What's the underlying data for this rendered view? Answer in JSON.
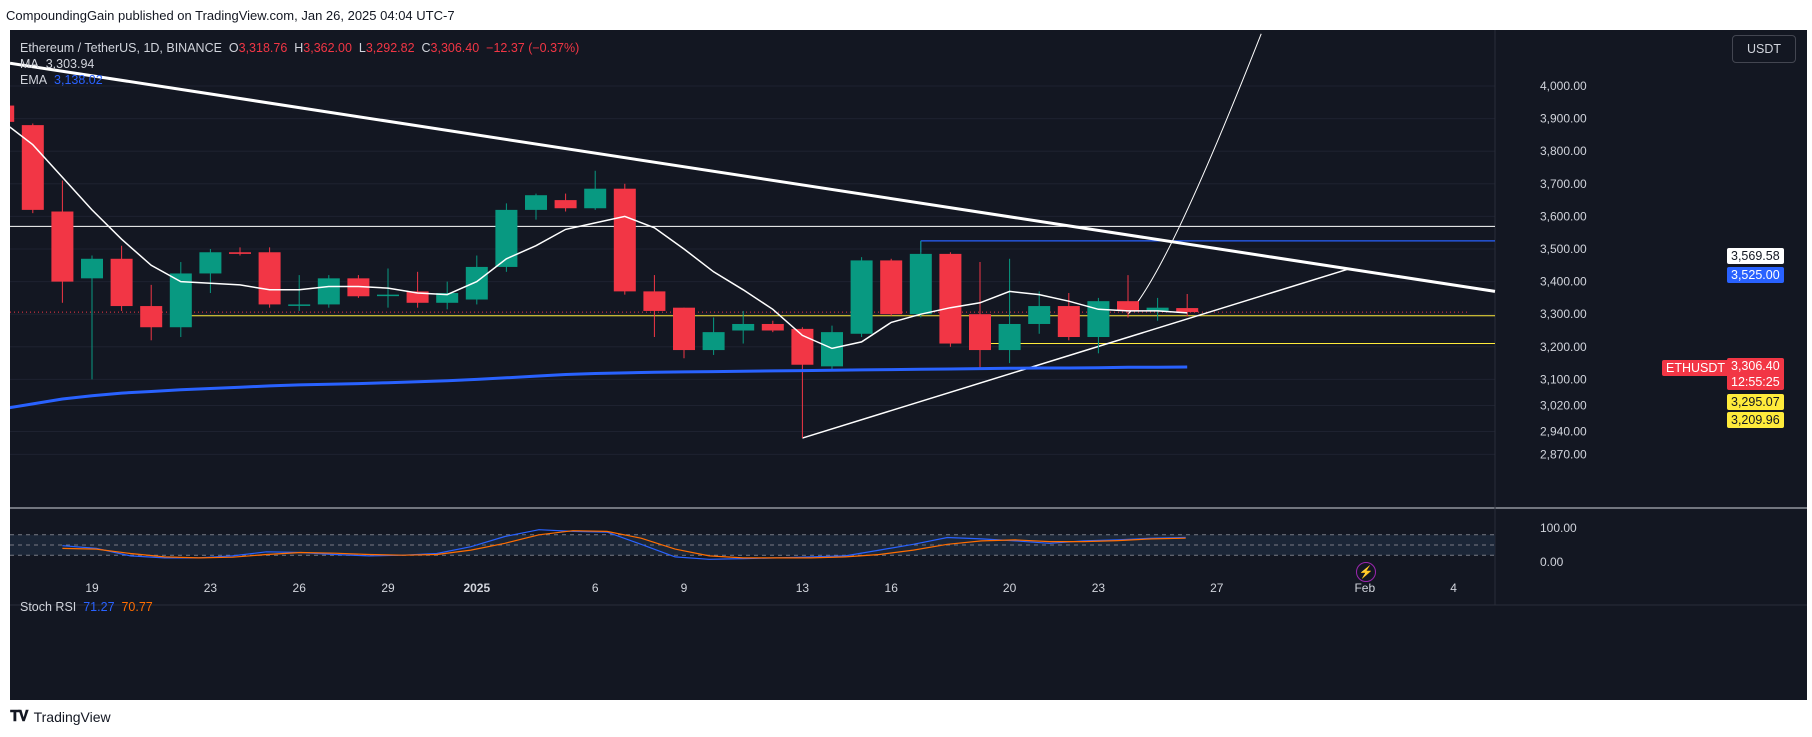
{
  "header": {
    "published_by": "CompoundingGain published on TradingView.com, Jan 26, 2025 04:04 UTC-7"
  },
  "legend": {
    "symbol": "Ethereum / TetherUS, 1D, BINANCE",
    "o_label": "O",
    "o_value": "3,318.76",
    "h_label": "H",
    "h_value": "3,362.00",
    "l_label": "L",
    "l_value": "3,292.82",
    "c_label": "C",
    "c_value": "3,306.40",
    "change": "−12.37 (−0.37%)",
    "ma_label": "MA",
    "ma_value": "3,303.94",
    "ema_label": "EMA",
    "ema_value": "3,138.02"
  },
  "currency_button": "USDT",
  "stoch_rsi": {
    "label": "Stoch RSI",
    "k_value": "71.27",
    "d_value": "70.77",
    "axis": [
      "100.00",
      "0.00"
    ]
  },
  "price_tags": {
    "level_top": "3,569.58",
    "level_blue": "3,525.00",
    "symbol": "ETHUSDT",
    "last_price": "3,306.40",
    "countdown": "12:55:25",
    "yellow_1": "3,295.07",
    "yellow_2": "3,209.96"
  },
  "footer": {
    "brand": "TradingView"
  },
  "colors": {
    "up": "#089981",
    "down": "#f23645",
    "ema": "#2962ff",
    "ma": "#ffffff",
    "background": "#131722",
    "stoch_k": "#2962ff",
    "stoch_d": "#ff6d00"
  },
  "chart_data": {
    "type": "candlestick",
    "symbol": "ETHUSDT",
    "y_axis_ticks": [
      4000,
      3900,
      3800,
      3700,
      3600,
      3500,
      3400,
      3300,
      3200,
      3100,
      3020,
      2940,
      2870
    ],
    "y_axis_labels": [
      "4,000.00",
      "3,900.00",
      "3,800.00",
      "3,700.00",
      "3,600.00",
      "3,500.00",
      "3,400.00",
      "3,300.00",
      "3,200.00",
      "3,100.00",
      "3,020.00",
      "2,940.00",
      "2,870.00"
    ],
    "x_axis_labels": [
      "19",
      "23",
      "26",
      "29",
      "2025",
      "6",
      "9",
      "13",
      "16",
      "20",
      "23",
      "27",
      "Feb",
      "4"
    ],
    "x_axis_day_index": [
      0,
      4,
      7,
      10,
      13,
      17,
      20,
      24,
      27,
      31,
      34,
      38,
      43,
      46
    ],
    "candles": [
      {
        "o": 3940,
        "h": 4000,
        "l": 3875,
        "c": 3890
      },
      {
        "o": 3880,
        "h": 3885,
        "l": 3610,
        "c": 3620
      },
      {
        "o": 3615,
        "h": 3710,
        "l": 3335,
        "c": 3400
      },
      {
        "o": 3410,
        "h": 3480,
        "l": 3100,
        "c": 3470
      },
      {
        "o": 3470,
        "h": 3510,
        "l": 3310,
        "c": 3325
      },
      {
        "o": 3325,
        "h": 3390,
        "l": 3220,
        "c": 3260
      },
      {
        "o": 3260,
        "h": 3460,
        "l": 3230,
        "c": 3425
      },
      {
        "o": 3425,
        "h": 3500,
        "l": 3365,
        "c": 3490
      },
      {
        "o": 3490,
        "h": 3505,
        "l": 3480,
        "c": 3485
      },
      {
        "o": 3490,
        "h": 3505,
        "l": 3320,
        "c": 3330
      },
      {
        "o": 3330,
        "h": 3420,
        "l": 3310,
        "c": 3330
      },
      {
        "o": 3330,
        "h": 3420,
        "l": 3320,
        "c": 3410
      },
      {
        "o": 3410,
        "h": 3420,
        "l": 3350,
        "c": 3355
      },
      {
        "o": 3360,
        "h": 3440,
        "l": 3320,
        "c": 3360
      },
      {
        "o": 3370,
        "h": 3430,
        "l": 3320,
        "c": 3335
      },
      {
        "o": 3335,
        "h": 3400,
        "l": 3315,
        "c": 3365
      },
      {
        "o": 3345,
        "h": 3480,
        "l": 3330,
        "c": 3445
      },
      {
        "o": 3445,
        "h": 3640,
        "l": 3430,
        "c": 3620
      },
      {
        "o": 3620,
        "h": 3670,
        "l": 3590,
        "c": 3665
      },
      {
        "o": 3650,
        "h": 3670,
        "l": 3615,
        "c": 3625
      },
      {
        "o": 3625,
        "h": 3740,
        "l": 3620,
        "c": 3685
      },
      {
        "o": 3685,
        "h": 3700,
        "l": 3360,
        "c": 3370
      },
      {
        "o": 3370,
        "h": 3420,
        "l": 3230,
        "c": 3310
      },
      {
        "o": 3320,
        "h": 3320,
        "l": 3165,
        "c": 3190
      },
      {
        "o": 3190,
        "h": 3290,
        "l": 3175,
        "c": 3245
      },
      {
        "o": 3250,
        "h": 3310,
        "l": 3210,
        "c": 3270
      },
      {
        "o": 3270,
        "h": 3280,
        "l": 3245,
        "c": 3250
      },
      {
        "o": 3255,
        "h": 3260,
        "l": 2920,
        "c": 3145
      },
      {
        "o": 3140,
        "h": 3265,
        "l": 3125,
        "c": 3245
      },
      {
        "o": 3240,
        "h": 3475,
        "l": 3230,
        "c": 3465
      },
      {
        "o": 3465,
        "h": 3470,
        "l": 3295,
        "c": 3300
      },
      {
        "o": 3300,
        "h": 3525,
        "l": 3290,
        "c": 3485
      },
      {
        "o": 3485,
        "h": 3490,
        "l": 3200,
        "c": 3210
      },
      {
        "o": 3300,
        "h": 3460,
        "l": 3130,
        "c": 3190
      },
      {
        "o": 3190,
        "h": 3470,
        "l": 3150,
        "c": 3270
      },
      {
        "o": 3270,
        "h": 3370,
        "l": 3240,
        "c": 3325
      },
      {
        "o": 3325,
        "h": 3365,
        "l": 3220,
        "c": 3230
      },
      {
        "o": 3230,
        "h": 3350,
        "l": 3180,
        "c": 3340
      },
      {
        "o": 3340,
        "h": 3420,
        "l": 3290,
        "c": 3310
      },
      {
        "o": 3310,
        "h": 3350,
        "l": 3280,
        "c": 3320
      },
      {
        "o": 3318.76,
        "h": 3362,
        "l": 3292.82,
        "c": 3306.4
      }
    ],
    "ma_values": [
      3890,
      3820,
      3720,
      3620,
      3530,
      3450,
      3400,
      3395,
      3390,
      3375,
      3375,
      3385,
      3385,
      3380,
      3365,
      3360,
      3400,
      3470,
      3510,
      3560,
      3580,
      3600,
      3565,
      3500,
      3430,
      3375,
      3315,
      3235,
      3195,
      3215,
      3275,
      3300,
      3320,
      3335,
      3370,
      3360,
      3340,
      3315,
      3310,
      3310,
      3304
    ],
    "ema_values": [
      3010,
      3025,
      3040,
      3050,
      3058,
      3063,
      3068,
      3072,
      3076,
      3080,
      3083,
      3085,
      3087,
      3090,
      3093,
      3096,
      3100,
      3105,
      3110,
      3115,
      3118,
      3120,
      3122,
      3123,
      3124,
      3125,
      3126,
      3127,
      3128,
      3129,
      3130,
      3131,
      3132,
      3133,
      3134,
      3135,
      3135,
      3136,
      3137,
      3137,
      3138
    ],
    "stoch_k": [
      48,
      40,
      18,
      12,
      12,
      18,
      30,
      28,
      22,
      18,
      20,
      25,
      45,
      75,
      95,
      90,
      88,
      52,
      15,
      8,
      10,
      12,
      15,
      18,
      35,
      52,
      72,
      68,
      62,
      55,
      62,
      65,
      70,
      72
    ],
    "stoch_d": [
      40,
      38,
      25,
      15,
      12,
      14,
      22,
      28,
      26,
      22,
      20,
      22,
      35,
      55,
      80,
      92,
      90,
      70,
      38,
      18,
      12,
      12,
      12,
      15,
      22,
      35,
      52,
      62,
      65,
      60,
      60,
      63,
      68,
      70
    ],
    "stoch_range": [
      0,
      100
    ],
    "ylim": [
      2830,
      4100
    ],
    "annotations": {
      "horizontal_levels": [
        3569.58,
        3525.0,
        3295.07,
        3209.96,
        3306.4
      ],
      "descending_trendline": "from above 4,000 at start to about 3,370 near Feb 4",
      "ascending_trendline": "from 2,920 (Jan 13) to about 3,440 near Jan 30",
      "projection_curve": "sharp upward curve from Jan 24 beyond 4,100"
    }
  }
}
